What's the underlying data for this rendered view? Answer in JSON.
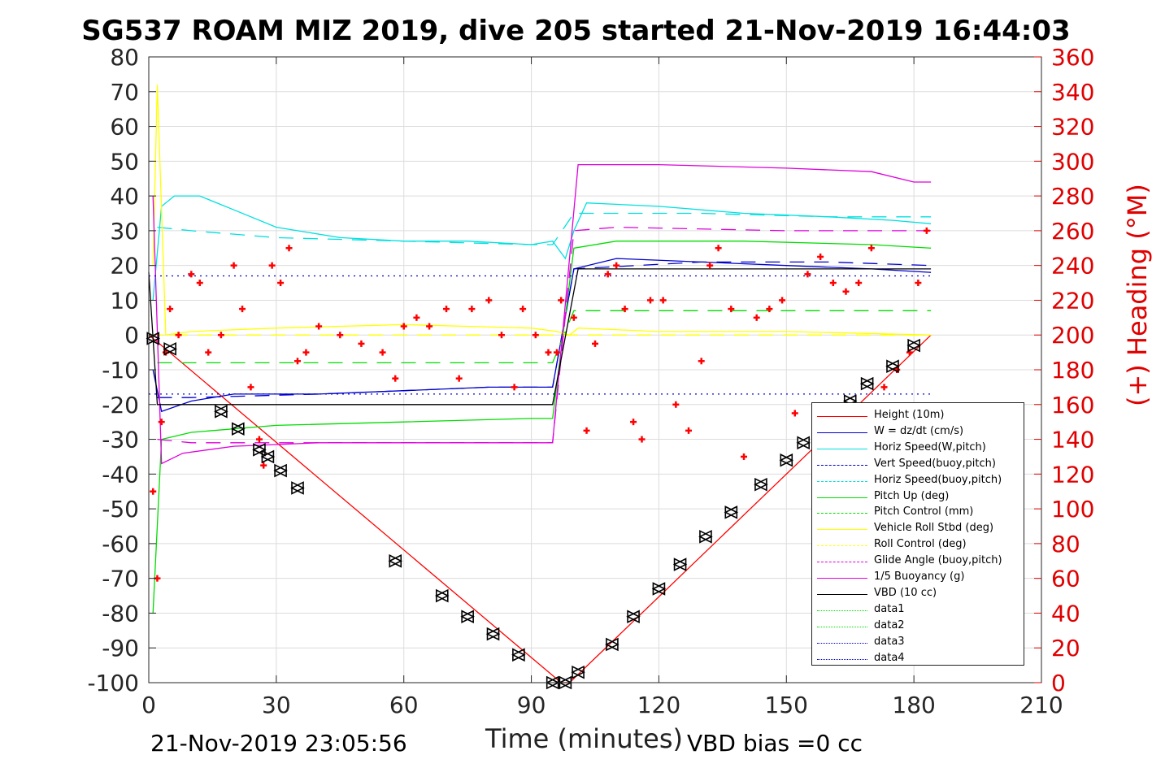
{
  "chart_data": {
    "type": "line",
    "title": "SG537 ROAM MIZ 2019, dive 205 started 21-Nov-2019 16:44:03",
    "xlabel": "Time (minutes)",
    "ylabel": "",
    "y2label": "(+) Heading (°M)",
    "xlim": [
      0,
      210
    ],
    "ylim": [
      -100,
      80
    ],
    "y2lim": [
      0,
      360
    ],
    "xticks": [
      0,
      30,
      60,
      90,
      120,
      150,
      180,
      210
    ],
    "yticks": [
      80,
      70,
      60,
      50,
      40,
      30,
      20,
      10,
      0,
      -10,
      -20,
      -30,
      -40,
      -50,
      -60,
      -70,
      -80,
      -90,
      -100
    ],
    "y2ticks": [
      360,
      340,
      320,
      300,
      280,
      260,
      240,
      220,
      200,
      180,
      160,
      140,
      120,
      100,
      80,
      60,
      40,
      20,
      0
    ],
    "grid": true,
    "legend_position": "bottom-right",
    "series": [
      {
        "name": "Height (10m)",
        "color": "#ff0000",
        "style": "solid",
        "x": [
          0,
          2,
          97,
          99,
          184
        ],
        "y": [
          0,
          -2,
          -100,
          -100,
          0
        ]
      },
      {
        "name": "W = dz/dt (cm/s)",
        "color": "#0000cc",
        "style": "solid",
        "x": [
          1,
          3,
          10,
          20,
          40,
          60,
          80,
          95,
          100,
          110,
          130,
          150,
          170,
          184
        ],
        "y": [
          -10,
          -22,
          -19,
          -17,
          -17,
          -16,
          -15,
          -15,
          19,
          22,
          21,
          20,
          19,
          18
        ]
      },
      {
        "name": "Horiz Speed(W,pitch)",
        "color": "#00e0e0",
        "style": "solid",
        "x": [
          1,
          3,
          6,
          12,
          20,
          30,
          45,
          60,
          75,
          90,
          95,
          98,
          100,
          103,
          120,
          140,
          160,
          175,
          184
        ],
        "y": [
          10,
          37,
          40,
          40,
          36,
          31,
          28,
          27,
          27,
          26,
          27,
          22,
          30,
          38,
          37,
          35,
          34,
          33,
          32
        ]
      },
      {
        "name": "Vert Speed(buoy,pitch)",
        "color": "#0000cc",
        "style": "dashed",
        "x": [
          2,
          10,
          40,
          60,
          80,
          95,
          100,
          130,
          160,
          184
        ],
        "y": [
          -18,
          -18,
          -17,
          -16,
          -15,
          -15,
          19,
          21,
          21,
          20
        ]
      },
      {
        "name": "Horiz Speed(buoy,pitch)",
        "color": "#00e0e0",
        "style": "dashed",
        "x": [
          2,
          10,
          30,
          60,
          90,
          95,
          100,
          130,
          160,
          184
        ],
        "y": [
          31,
          30,
          28,
          27,
          26,
          26,
          35,
          35,
          34,
          34
        ]
      },
      {
        "name": "Pitch Up (deg)",
        "color": "#00dd00",
        "style": "solid",
        "x": [
          1,
          3,
          10,
          30,
          60,
          90,
          95,
          100,
          110,
          140,
          170,
          184
        ],
        "y": [
          -80,
          -30,
          -28,
          -26,
          -25,
          -24,
          -24,
          25,
          27,
          27,
          26,
          25
        ]
      },
      {
        "name": "Pitch Control (mm)",
        "color": "#00dd00",
        "style": "dashed",
        "x": [
          2,
          95,
          100,
          184
        ],
        "y": [
          -8,
          -8,
          7,
          7
        ]
      },
      {
        "name": "Vehicle Roll Stbd (deg)",
        "color": "#ffff00",
        "style": "solid",
        "x": [
          1,
          2,
          4,
          10,
          30,
          60,
          90,
          96,
          99,
          101,
          120,
          150,
          184
        ],
        "y": [
          20,
          72,
          0,
          1,
          2,
          3,
          2,
          1,
          0,
          2,
          1,
          1,
          0
        ]
      },
      {
        "name": "Roll Control (deg)",
        "color": "#ffff00",
        "style": "dashed",
        "x": [
          0,
          184
        ],
        "y": [
          0,
          0
        ]
      },
      {
        "name": "Glide Angle (buoy,pitch)",
        "color": "#dd00dd",
        "style": "dashed",
        "x": [
          2,
          10,
          40,
          95,
          100,
          110,
          150,
          184
        ],
        "y": [
          -30,
          -31,
          -31,
          -31,
          30,
          31,
          30,
          30
        ]
      },
      {
        "name": "1/5 Buoyancy (g)",
        "color": "#dd00dd",
        "style": "solid",
        "x": [
          1,
          3,
          8,
          20,
          40,
          95,
          101,
          120,
          150,
          170,
          180,
          184
        ],
        "y": [
          40,
          -37,
          -34,
          -32,
          -31,
          -31,
          49,
          49,
          48,
          47,
          44,
          44
        ]
      },
      {
        "name": "VBD (10 cc)",
        "color": "#000000",
        "style": "solid",
        "x": [
          0,
          2,
          95,
          101,
          184
        ],
        "y": [
          18,
          -20,
          -20,
          19,
          19
        ]
      },
      {
        "name": "data1",
        "color": "#00dd00",
        "style": "dotted",
        "x": [],
        "y": []
      },
      {
        "name": "data2",
        "color": "#00dd00",
        "style": "dotted",
        "x": [],
        "y": []
      },
      {
        "name": "data3",
        "color": "#0000cc",
        "style": "dotted",
        "x": [
          0,
          184
        ],
        "y": [
          17,
          17
        ]
      },
      {
        "name": "data4",
        "color": "#0000cc",
        "style": "dotted",
        "x": [
          0,
          184
        ],
        "y": [
          -17,
          -17
        ]
      }
    ],
    "heading_series": {
      "axis": "right",
      "color": "#ff0000",
      "marker": "+",
      "x": [
        1,
        2,
        3,
        4,
        5,
        7,
        10,
        12,
        14,
        17,
        20,
        22,
        24,
        26,
        27,
        29,
        31,
        33,
        35,
        37,
        40,
        45,
        50,
        55,
        58,
        60,
        63,
        66,
        70,
        73,
        76,
        80,
        83,
        86,
        88,
        91,
        94,
        96,
        97,
        100,
        103,
        105,
        108,
        110,
        112,
        114,
        116,
        118,
        121,
        124,
        127,
        130,
        132,
        134,
        137,
        140,
        143,
        146,
        149,
        152,
        155,
        158,
        161,
        164,
        167,
        170,
        173,
        176,
        179,
        181,
        183
      ],
      "y": [
        110,
        60,
        150,
        190,
        215,
        200,
        235,
        230,
        190,
        200,
        240,
        215,
        170,
        140,
        125,
        240,
        230,
        250,
        185,
        190,
        205,
        200,
        195,
        190,
        175,
        205,
        210,
        205,
        215,
        175,
        215,
        220,
        200,
        170,
        215,
        200,
        190,
        190,
        220,
        210,
        145,
        195,
        235,
        240,
        215,
        150,
        140,
        220,
        220,
        160,
        145,
        185,
        240,
        250,
        215,
        130,
        210,
        215,
        220,
        155,
        235,
        245,
        230,
        225,
        230,
        250,
        170,
        180,
        190,
        230,
        260
      ]
    },
    "position_markers": {
      "color": "#000000",
      "x": [
        1,
        5,
        17,
        21,
        26,
        28,
        31,
        35,
        58,
        69,
        75,
        81,
        87,
        95,
        98,
        101,
        109,
        114,
        120,
        125,
        131,
        137,
        144,
        150,
        154,
        160,
        165,
        169,
        175,
        180
      ],
      "y": [
        -1,
        -4,
        -22,
        -27,
        -33,
        -35,
        -39,
        -44,
        -65,
        -75,
        -81,
        -86,
        -92,
        -100,
        -100,
        -97,
        -89,
        -81,
        -73,
        -66,
        -58,
        -51,
        -43,
        -36,
        -31,
        -25,
        -19,
        -14,
        -9,
        -3
      ]
    }
  },
  "footer": {
    "timestamp": "21-Nov-2019 23:05:56",
    "vbd_bias": "VBD bias =0 cc"
  }
}
